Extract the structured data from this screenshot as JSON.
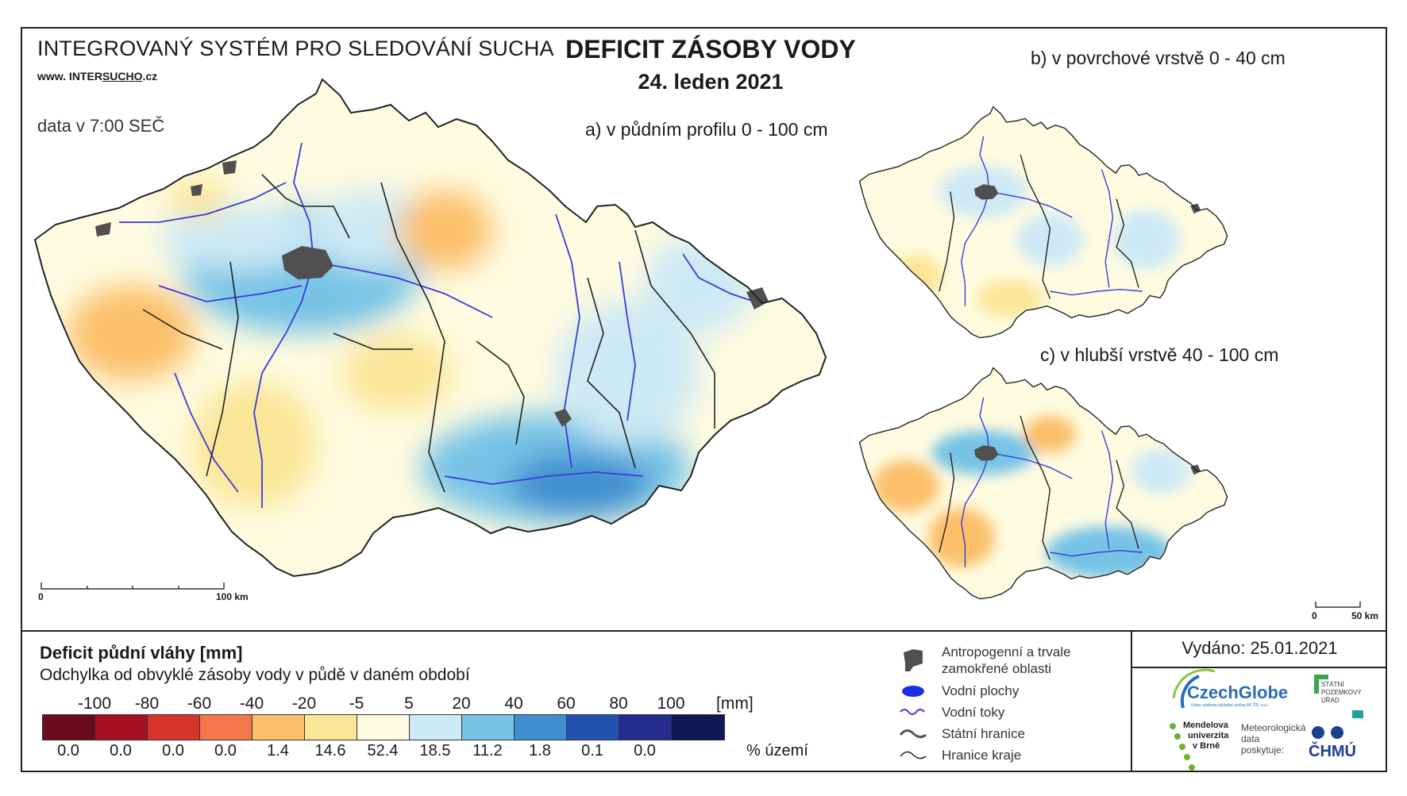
{
  "header": {
    "system_title": "INTEGROVANÝ SYSTÉM PRO SLEDOVÁNÍ SUCHA",
    "website_prefix": "www. INTER",
    "website_mid": "SUCHO",
    "website_suffix": ".cz",
    "data_time": "data v 7:00 SEČ",
    "title": "DEFICIT ZÁSOBY VODY",
    "date": "24. leden 2021"
  },
  "panels": {
    "a": "a) v půdním profilu 0 - 100 cm",
    "b": "b) v povrchové vrstvě 0 - 40 cm",
    "c": "c) v hlubší vrstvě 40 - 100 cm"
  },
  "scalebars": {
    "main": {
      "zero": "0",
      "end": "100 km"
    },
    "small": {
      "zero": "0",
      "end": "50 km"
    }
  },
  "legend": {
    "title": "Deficit půdní vláhy  [mm]",
    "subtitle": "Odchylka od obvyklé zásoby vody v půdě v daném období",
    "unit": "[mm]",
    "percent_label": "% území",
    "ticks": [
      "-100",
      "-80",
      "-60",
      "-40",
      "-20",
      "-5",
      "5",
      "20",
      "40",
      "60",
      "80",
      "100"
    ],
    "colors": [
      "#6b0a1a",
      "#a40f22",
      "#d6332a",
      "#f4774b",
      "#fbbf6a",
      "#fbe698",
      "#fefbe0",
      "#cde9f5",
      "#76c3e6",
      "#3f8fd0",
      "#2352b3",
      "#232b8f",
      "#0e1a55"
    ],
    "percentages": [
      "0.0",
      "0.0",
      "0.0",
      "0.0",
      "1.4",
      "14.6",
      "52.4",
      "18.5",
      "11.2",
      "1.8",
      "0.1",
      "0.0"
    ]
  },
  "symbols": {
    "urban": "Antropogenní a trvale\nzamokřené oblasti",
    "urban_l1": "Antropogenní a trvale",
    "urban_l2": "zamokřené oblasti",
    "water": "Vodní plochy",
    "rivers": "Vodní toky",
    "state_border": "Státní hranice",
    "region_border": "Hranice kraje"
  },
  "issued": "Vydáno: 25.01.2021",
  "logos": {
    "czechglobe": "CzechGlobe",
    "czechglobe_sub": "Ústav výzkumu globální změny AV ČR, v.v.i.",
    "spu_l1": "STÁTNÍ",
    "spu_l2": "POZEMKOVÝ",
    "spu_l3": "ÚŘAD",
    "mendel_l1": "Mendelova",
    "mendel_l2": "univerzita",
    "mendel_l3": "v Brně",
    "meteo_l1": "Meteorologická",
    "meteo_l2": "data",
    "meteo_l3": "poskytuje:",
    "chmu": "ČHMÚ"
  },
  "map_colors": {
    "neutral": "#fefbe0",
    "dry_light": "#fbe698",
    "dry": "#fbbf6a",
    "wet_light": "#cde9f5",
    "wet": "#76c3e6",
    "wet_mid": "#3f8fd0",
    "urban": "#505050",
    "river": "#3b3bd6",
    "border": "#222222"
  }
}
